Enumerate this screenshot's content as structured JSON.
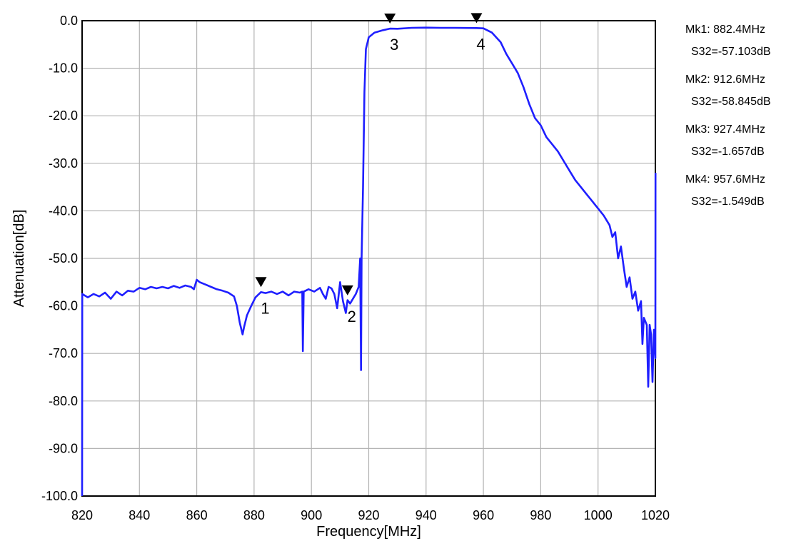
{
  "chart_data": {
    "type": "line",
    "title": "",
    "xlabel": "Frequency[MHz]",
    "ylabel": "Attenuation[dB]",
    "xlim": [
      820,
      1020
    ],
    "ylim": [
      -100,
      0
    ],
    "x_ticks": [
      820,
      840,
      860,
      880,
      900,
      920,
      940,
      960,
      980,
      1000,
      1020
    ],
    "x_tick_labels": [
      "820",
      "840",
      "860",
      "880",
      "900",
      "920",
      "940",
      "960",
      "980",
      "1000",
      "1020"
    ],
    "y_ticks": [
      0,
      -10,
      -20,
      -30,
      -40,
      -50,
      -60,
      -70,
      -80,
      -90,
      -100
    ],
    "y_tick_labels": [
      "0.0",
      "-10.0",
      "-20.0",
      "-30.0",
      "-40.0",
      "-50.0",
      "-60.0",
      "-70.0",
      "-80.0",
      "-90.0",
      "-100.0"
    ],
    "grid": true,
    "line_color": "#1f1fff",
    "series": [
      {
        "name": "",
        "points": [
          [
            820,
            -100
          ],
          [
            820.05,
            -57.5
          ],
          [
            822,
            -58.2
          ],
          [
            824,
            -57.5
          ],
          [
            826,
            -58.0
          ],
          [
            828,
            -57.2
          ],
          [
            830,
            -58.5
          ],
          [
            832,
            -57.0
          ],
          [
            834,
            -57.8
          ],
          [
            836,
            -56.8
          ],
          [
            838,
            -57.0
          ],
          [
            840,
            -56.2
          ],
          [
            842,
            -56.5
          ],
          [
            844,
            -56.0
          ],
          [
            846,
            -56.3
          ],
          [
            848,
            -56.0
          ],
          [
            850,
            -56.3
          ],
          [
            852,
            -55.8
          ],
          [
            854,
            -56.2
          ],
          [
            856,
            -55.7
          ],
          [
            858,
            -56.0
          ],
          [
            859,
            -56.5
          ],
          [
            860,
            -54.5
          ],
          [
            861,
            -55.0
          ],
          [
            863,
            -55.5
          ],
          [
            865,
            -56.0
          ],
          [
            867,
            -56.5
          ],
          [
            869,
            -56.8
          ],
          [
            871,
            -57.2
          ],
          [
            873,
            -58.0
          ],
          [
            874,
            -60.0
          ],
          [
            875,
            -63.5
          ],
          [
            876,
            -66.0
          ],
          [
            876.5,
            -64.5
          ],
          [
            877.5,
            -62.0
          ],
          [
            879,
            -60.0
          ],
          [
            880.5,
            -58.2
          ],
          [
            882.4,
            -57.1
          ],
          [
            884,
            -57.3
          ],
          [
            886,
            -57.0
          ],
          [
            888,
            -57.5
          ],
          [
            890,
            -57.0
          ],
          [
            892,
            -57.8
          ],
          [
            894,
            -57.0
          ],
          [
            896,
            -57.2
          ],
          [
            896.8,
            -57.0
          ],
          [
            897,
            -69.5
          ],
          [
            897.3,
            -57.0
          ],
          [
            899,
            -56.5
          ],
          [
            901,
            -57.0
          ],
          [
            903,
            -56.2
          ],
          [
            904,
            -57.5
          ],
          [
            905,
            -58.5
          ],
          [
            906,
            -56.0
          ],
          [
            907,
            -56.3
          ],
          [
            908,
            -57.5
          ],
          [
            909,
            -60.5
          ],
          [
            910,
            -55.0
          ],
          [
            911,
            -59.0
          ],
          [
            912,
            -61.5
          ],
          [
            912.6,
            -58.8
          ],
          [
            913.5,
            -59.5
          ],
          [
            914.5,
            -58.5
          ],
          [
            915.5,
            -57.5
          ],
          [
            916.5,
            -56.0
          ],
          [
            917,
            -50.0
          ],
          [
            917.3,
            -73.5
          ],
          [
            917.5,
            -50.0
          ],
          [
            918,
            -35.0
          ],
          [
            918.5,
            -15.0
          ],
          [
            919,
            -6.0
          ],
          [
            920,
            -3.5
          ],
          [
            922,
            -2.5
          ],
          [
            925,
            -2.0
          ],
          [
            927.4,
            -1.66
          ],
          [
            930,
            -1.7
          ],
          [
            935,
            -1.5
          ],
          [
            940,
            -1.45
          ],
          [
            945,
            -1.5
          ],
          [
            950,
            -1.5
          ],
          [
            957.6,
            -1.55
          ],
          [
            960,
            -1.6
          ],
          [
            963,
            -2.5
          ],
          [
            966,
            -4.5
          ],
          [
            968,
            -7.0
          ],
          [
            970,
            -9.0
          ],
          [
            972,
            -11.0
          ],
          [
            974,
            -14.0
          ],
          [
            976,
            -17.5
          ],
          [
            978,
            -20.5
          ],
          [
            980,
            -22.0
          ],
          [
            982,
            -24.5
          ],
          [
            984,
            -26.0
          ],
          [
            986,
            -27.5
          ],
          [
            988,
            -29.5
          ],
          [
            990,
            -31.5
          ],
          [
            992,
            -33.5
          ],
          [
            994,
            -35.0
          ],
          [
            996,
            -36.5
          ],
          [
            998,
            -38.0
          ],
          [
            1000,
            -39.5
          ],
          [
            1002,
            -41.0
          ],
          [
            1004,
            -43.0
          ],
          [
            1005,
            -45.5
          ],
          [
            1006,
            -44.5
          ],
          [
            1007,
            -50.0
          ],
          [
            1008,
            -47.5
          ],
          [
            1009,
            -52.0
          ],
          [
            1010,
            -56.0
          ],
          [
            1011,
            -54.0
          ],
          [
            1012,
            -58.5
          ],
          [
            1013,
            -57.0
          ],
          [
            1014,
            -61.0
          ],
          [
            1015,
            -59.0
          ],
          [
            1015.5,
            -68.0
          ],
          [
            1016,
            -62.5
          ],
          [
            1017,
            -64.0
          ],
          [
            1017.5,
            -77.0
          ],
          [
            1018,
            -64.0
          ],
          [
            1018.5,
            -66.0
          ],
          [
            1019,
            -76.0
          ],
          [
            1019.5,
            -65.0
          ],
          [
            1020,
            -71.0
          ],
          [
            1020.05,
            -32.0
          ]
        ]
      }
    ],
    "markers": [
      {
        "label": "1",
        "x": 882.4,
        "y": -57.103
      },
      {
        "label": "2",
        "x": 912.6,
        "y": -58.845
      },
      {
        "label": "3",
        "x": 927.4,
        "y": -1.657
      },
      {
        "label": "4",
        "x": 957.6,
        "y": -1.549
      }
    ],
    "marker_readouts": [
      {
        "line1": "Mk1:  882.4MHz",
        "line2": "S32=-57.103dB"
      },
      {
        "line1": "Mk2:  912.6MHz",
        "line2": "S32=-58.845dB"
      },
      {
        "line1": "Mk3:  927.4MHz",
        "line2": "S32=-1.657dB"
      },
      {
        "line1": "Mk4:  957.6MHz",
        "line2": "S32=-1.549dB"
      }
    ]
  }
}
